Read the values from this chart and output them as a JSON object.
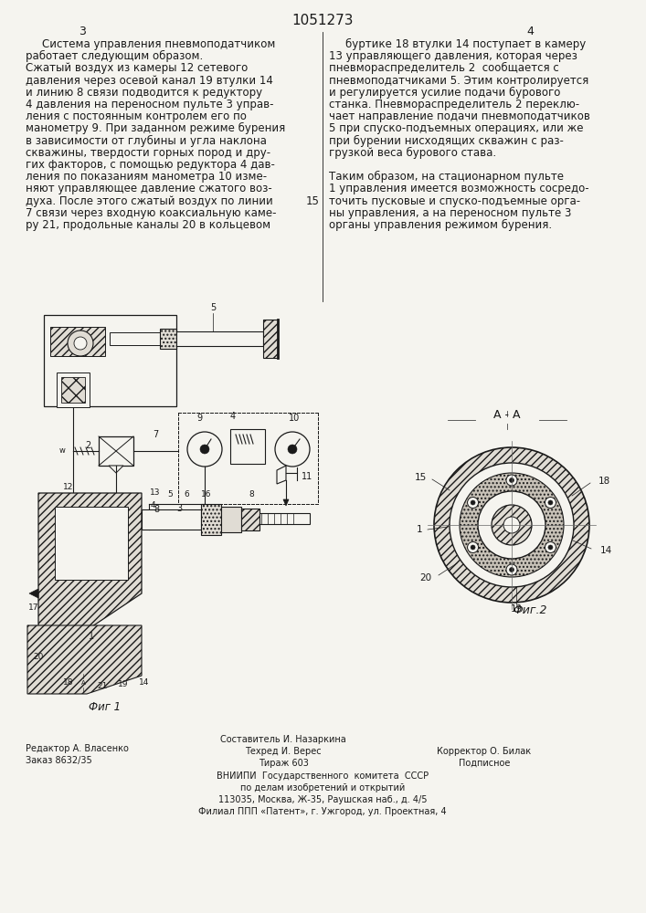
{
  "title_number": "1051273",
  "page_left": "3",
  "page_right": "4",
  "bg_color": "#f5f4ef",
  "text_color": "#1a1a1a",
  "text_left_col": [
    "Система управления пневмоподатчиком",
    "работает следующим образом.",
    "Сжатый воздух из камеры 12 сетевого",
    "давления через осевой канал 19 втулки 14",
    "и линию 8 связи подводится к редуктору",
    "4 давления на переносном пульте 3 управ-",
    "ления с постоянным контролем его по",
    "манометру 9. При заданном режиме бурения",
    "в зависимости от глубины и угла наклона",
    "скважины, твердости горных пород и дру-",
    "гих факторов, с помощью редуктора 4 дав-",
    "ления по показаниям манометра 10 изме-",
    "няют управляющее давление сжатого воз-",
    "духа. После этого сжатый воздух по линии",
    "7 связи через входную коаксиальную каме-",
    "ру 21, продольные каналы 20 в кольцевом"
  ],
  "text_right_col": [
    "буртике 18 втулки 14 поступает в камеру",
    "13 управляющего давления, которая через",
    "пневмораспределитель 2  сообщается с",
    "пневмоподатчиками 5. Этим контролируется",
    "и регулируется усилие подачи бурового",
    "станка. Пневмораспределитель 2 переклю-",
    "чает направление подачи пневмоподатчиков",
    "5 при спуско-подъемных операциях, или же",
    "при бурении нисходящих скважин с раз-",
    "грузкой веса бурового става.",
    "",
    "Таким образом, на стационарном пульте",
    "1 управления имеется возможность сосредо-",
    "точить пусковые и спуско-подъемные орга-",
    "ны управления, а на переносном пульте 3",
    "органы управления режимом бурения."
  ],
  "line_number": "15",
  "footer_left1": "Редактор А. Власенко",
  "footer_left2": "Заказ 8632/35",
  "footer_center1": "Составитель И. Назаркина",
  "footer_center2": "Техред И. Верес",
  "footer_center3": "Тираж 603",
  "footer_right1": "Корректор О. Билак",
  "footer_right2": "Подписное",
  "footer_vniip1": "ВНИИПИ  Государственного  комитета  СССР",
  "footer_vniip2": "по делам изобретений и открытий",
  "footer_vniip3": "113035, Москва, Ж-35, Раушская наб., д. 4/5",
  "footer_vniip4": "Филиал ППП «Патент», г. Ужгород, ул. Проектная, 4",
  "fig1_label": "Фиг 1",
  "fig2_label": "Фиг.2",
  "aa_label": "A - A"
}
